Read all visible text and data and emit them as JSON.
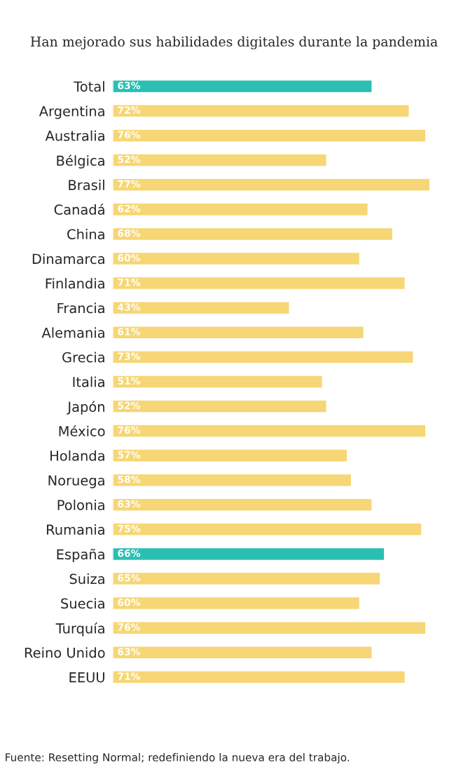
{
  "chart_data": {
    "type": "bar",
    "orientation": "horizontal",
    "title": "Han mejorado sus habilidades digitales durante la pandemia",
    "categories": [
      "Total",
      "Argentina",
      "Australia",
      "Bélgica",
      "Brasil",
      "Canadá",
      "China",
      "Dinamarca",
      "Finlandia",
      "Francia",
      "Alemania",
      "Grecia",
      "Italia",
      "Japón",
      "México",
      "Holanda",
      "Noruega",
      "Polonia",
      "Rumania",
      "España",
      "Suiza",
      "Suecia",
      "Turquía",
      "Reino Unido",
      "EEUU"
    ],
    "values": [
      63,
      72,
      76,
      52,
      77,
      62,
      68,
      60,
      71,
      43,
      61,
      73,
      51,
      52,
      76,
      57,
      58,
      63,
      75,
      66,
      65,
      60,
      76,
      63,
      71
    ],
    "colors": [
      "#2bbfb3",
      "#f6d675",
      "#f6d675",
      "#f6d675",
      "#f6d675",
      "#f6d675",
      "#f6d675",
      "#f6d675",
      "#f6d675",
      "#f6d675",
      "#f6d675",
      "#f6d675",
      "#f6d675",
      "#f6d675",
      "#f6d675",
      "#f6d675",
      "#f6d675",
      "#f6d675",
      "#f6d675",
      "#2bbfb3",
      "#f6d675",
      "#f6d675",
      "#f6d675",
      "#f6d675",
      "#f6d675"
    ],
    "value_labels": [
      "63%",
      "72%",
      "76%",
      "52%",
      "77%",
      "62%",
      "68%",
      "60%",
      "71%",
      "43%",
      "61%",
      "73%",
      "51%",
      "52%",
      "76%",
      "57%",
      "58%",
      "63%",
      "75%",
      "66%",
      "65%",
      "60%",
      "76%",
      "63%",
      "71%"
    ],
    "grid": false,
    "annotations": [
      "Fuente: Resetting Normal; redefiniendo la nueva era del trabajo."
    ]
  }
}
